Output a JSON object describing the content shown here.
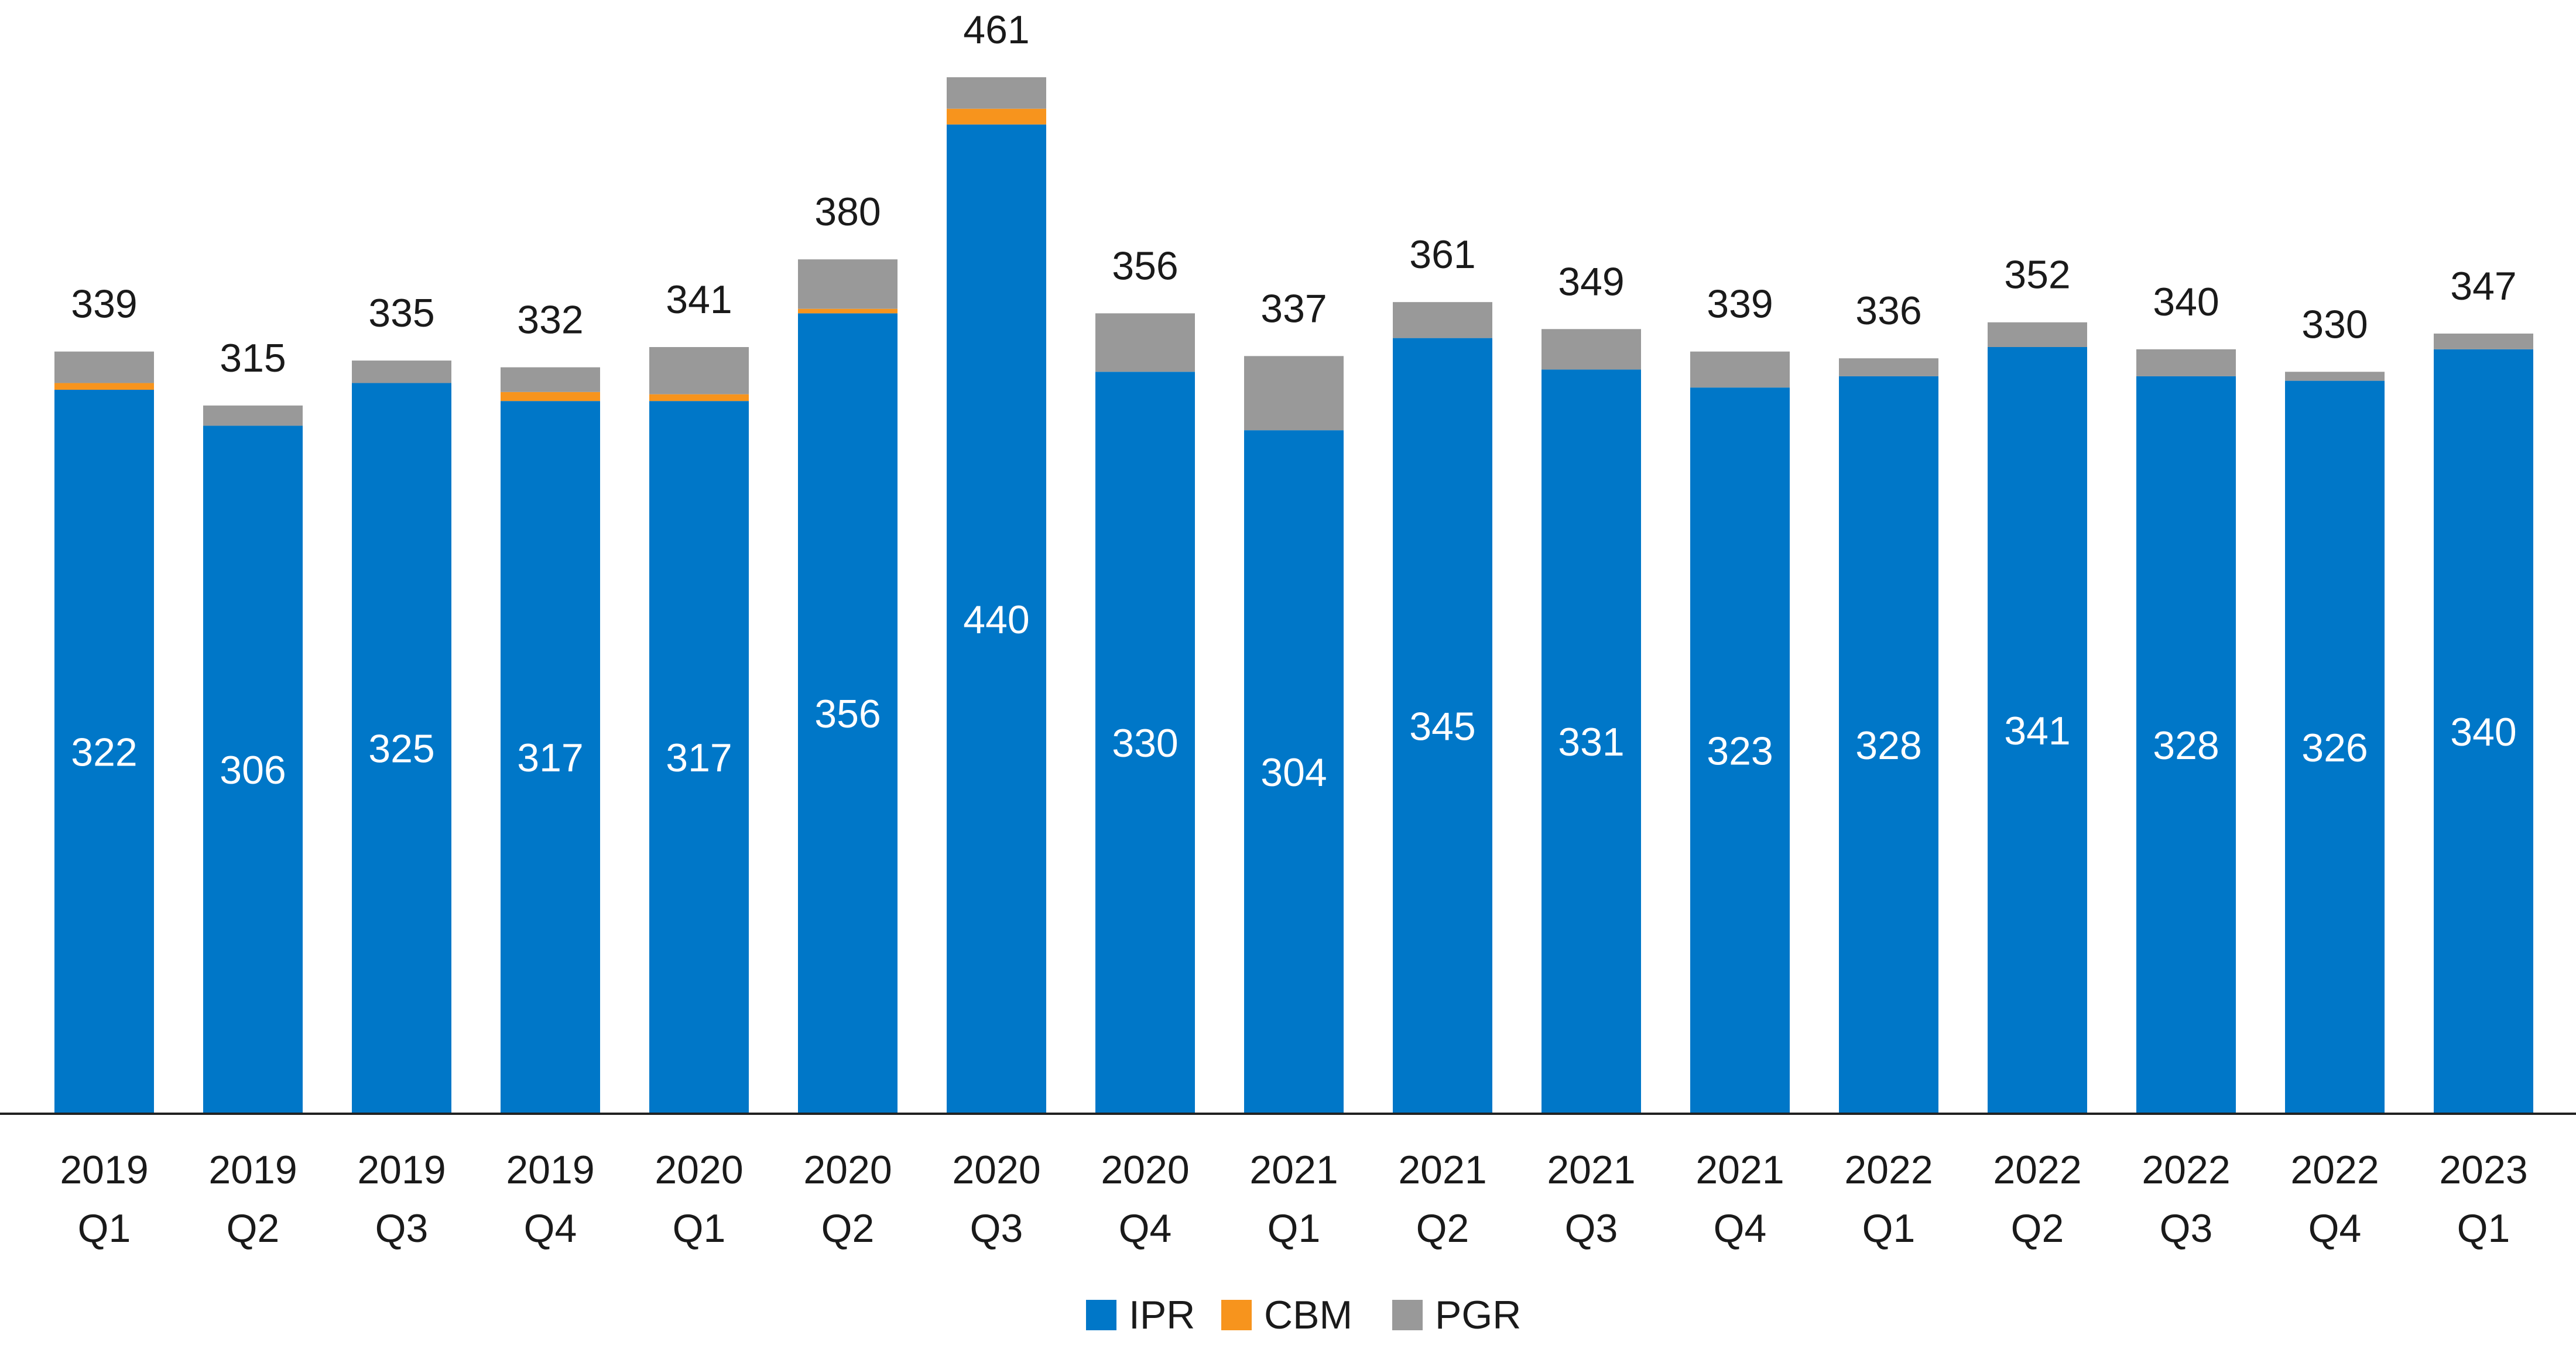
{
  "chart_data": {
    "type": "bar",
    "stacked": true,
    "title": "",
    "xlabel": "",
    "ylabel": "",
    "ylim": [
      0,
      461
    ],
    "grid": false,
    "legend_position": "bottom",
    "categories": [
      [
        "2019",
        "Q1"
      ],
      [
        "2019",
        "Q2"
      ],
      [
        "2019",
        "Q3"
      ],
      [
        "2019",
        "Q4"
      ],
      [
        "2020",
        "Q1"
      ],
      [
        "2020",
        "Q2"
      ],
      [
        "2020",
        "Q3"
      ],
      [
        "2020",
        "Q4"
      ],
      [
        "2021",
        "Q1"
      ],
      [
        "2021",
        "Q2"
      ],
      [
        "2021",
        "Q3"
      ],
      [
        "2021",
        "Q4"
      ],
      [
        "2022",
        "Q1"
      ],
      [
        "2022",
        "Q2"
      ],
      [
        "2022",
        "Q3"
      ],
      [
        "2022",
        "Q4"
      ],
      [
        "2023",
        "Q1"
      ]
    ],
    "series": [
      {
        "name": "IPR",
        "color": "#0077C8",
        "values": [
          322,
          306,
          325,
          317,
          317,
          356,
          440,
          330,
          304,
          345,
          331,
          323,
          328,
          341,
          328,
          326,
          340
        ]
      },
      {
        "name": "CBM",
        "color": "#F7941D",
        "values": [
          3,
          0,
          0,
          4,
          3,
          2,
          7,
          0,
          0,
          0,
          0,
          0,
          0,
          0,
          0,
          0,
          0
        ]
      },
      {
        "name": "PGR",
        "color": "#999999",
        "values": [
          14,
          9,
          10,
          11,
          21,
          22,
          14,
          26,
          33,
          16,
          18,
          16,
          8,
          11,
          12,
          4,
          7
        ]
      }
    ],
    "totals": [
      339,
      315,
      335,
      332,
      341,
      380,
      461,
      356,
      337,
      361,
      349,
      339,
      336,
      352,
      340,
      330,
      347
    ]
  }
}
